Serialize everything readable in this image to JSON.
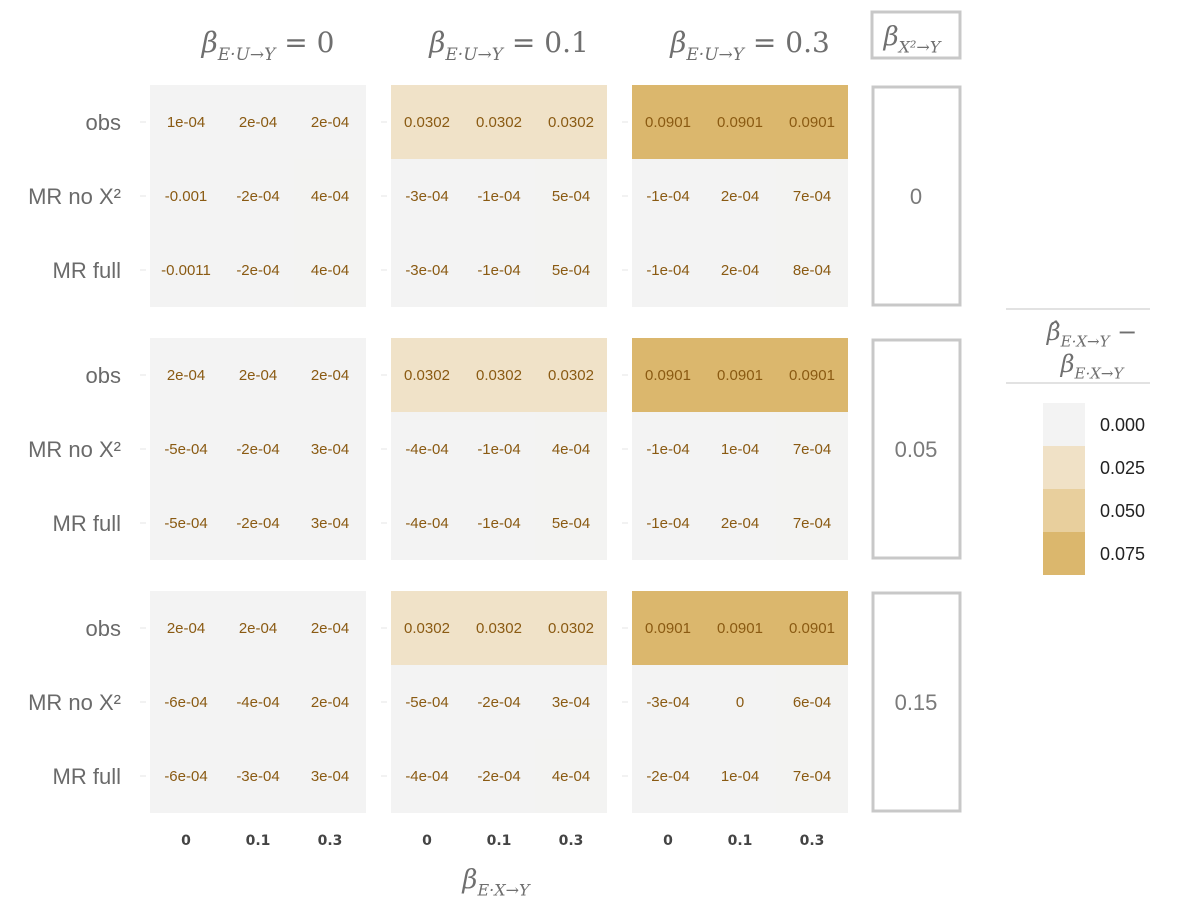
{
  "chart_data": {
    "type": "heatmap",
    "column_facets": [
      {
        "label": "β_{E·U→Y} = 0",
        "math": {
          "sym": "β",
          "sub": "E·U→Y",
          "rest": " = 0"
        }
      },
      {
        "label": "β_{E·U→Y} = 0.1",
        "math": {
          "sym": "β",
          "sub": "E·U→Y",
          "rest": " = 0.1"
        }
      },
      {
        "label": "β_{E·U→Y} = 0.3",
        "math": {
          "sym": "β",
          "sub": "E·U→Y",
          "rest": " = 0.3"
        }
      }
    ],
    "row_facet_title": {
      "sym": "β",
      "sub": "X²→Y"
    },
    "row_facets": [
      "0",
      "0.05",
      "0.15"
    ],
    "row_labels": [
      "obs",
      "MR no X²",
      "MR full"
    ],
    "x_ticks": [
      "0",
      "0.1",
      "0.3"
    ],
    "xlabel": {
      "sym": "β",
      "sub": "E·X→Y"
    },
    "legend": {
      "title_line1": {
        "sym": "β",
        "sub": "E·X→Y",
        "rest": " −"
      },
      "title_line2": {
        "sym": "β",
        "sub": "E·X→Y"
      },
      "position": "right",
      "entries": [
        {
          "label": "0.000",
          "color": "#f3f3f3"
        },
        {
          "label": "0.025",
          "color": "#f0e1c6"
        },
        {
          "label": "0.050",
          "color": "#e8cf9d"
        },
        {
          "label": "0.075",
          "color": "#dbb76d"
        }
      ]
    },
    "panels": [
      [
        [
          [
            "1e-04",
            "2e-04",
            "2e-04"
          ],
          [
            "-0.001",
            "-2e-04",
            "4e-04"
          ],
          [
            "-0.0011",
            "-2e-04",
            "4e-04"
          ]
        ],
        [
          [
            "0.0302",
            "0.0302",
            "0.0302"
          ],
          [
            "-3e-04",
            "-1e-04",
            "5e-04"
          ],
          [
            "-3e-04",
            "-1e-04",
            "5e-04"
          ]
        ],
        [
          [
            "0.0901",
            "0.0901",
            "0.0901"
          ],
          [
            "-1e-04",
            "2e-04",
            "7e-04"
          ],
          [
            "-1e-04",
            "2e-04",
            "8e-04"
          ]
        ]
      ],
      [
        [
          [
            "2e-04",
            "2e-04",
            "2e-04"
          ],
          [
            "-5e-04",
            "-2e-04",
            "3e-04"
          ],
          [
            "-5e-04",
            "-2e-04",
            "3e-04"
          ]
        ],
        [
          [
            "0.0302",
            "0.0302",
            "0.0302"
          ],
          [
            "-4e-04",
            "-1e-04",
            "4e-04"
          ],
          [
            "-4e-04",
            "-1e-04",
            "5e-04"
          ]
        ],
        [
          [
            "0.0901",
            "0.0901",
            "0.0901"
          ],
          [
            "-1e-04",
            "1e-04",
            "7e-04"
          ],
          [
            "-1e-04",
            "2e-04",
            "7e-04"
          ]
        ]
      ],
      [
        [
          [
            "2e-04",
            "2e-04",
            "2e-04"
          ],
          [
            "-6e-04",
            "-4e-04",
            "2e-04"
          ],
          [
            "-6e-04",
            "-3e-04",
            "3e-04"
          ]
        ],
        [
          [
            "0.0302",
            "0.0302",
            "0.0302"
          ],
          [
            "-5e-04",
            "-2e-04",
            "3e-04"
          ],
          [
            "-4e-04",
            "-2e-04",
            "4e-04"
          ]
        ],
        [
          [
            "0.0901",
            "0.0901",
            "0.0901"
          ],
          [
            "-3e-04",
            "0",
            "6e-04"
          ],
          [
            "-2e-04",
            "1e-04",
            "7e-04"
          ]
        ]
      ]
    ],
    "colors": {
      "text": "#8a5a12",
      "strip_border": "#c8c8c8",
      "empty": "#f3f3f3"
    }
  }
}
